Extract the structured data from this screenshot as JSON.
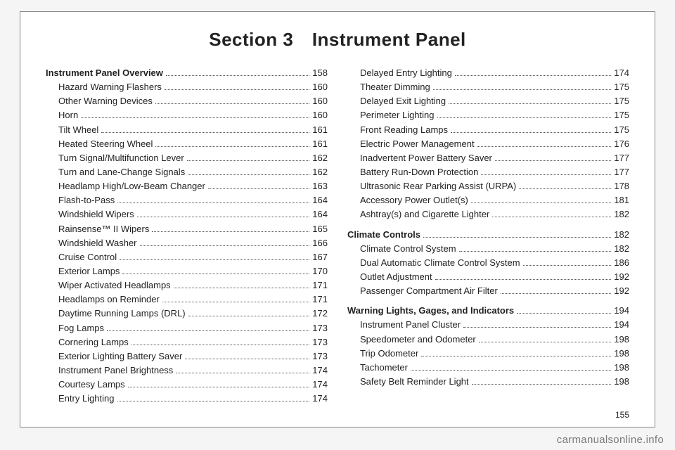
{
  "title": "Section 3 Instrument Panel",
  "page_number": "155",
  "watermark": "carmanualsonline.info",
  "columns": [
    [
      {
        "type": "heading",
        "label": "Instrument Panel Overview",
        "page": "158"
      },
      {
        "type": "sub",
        "label": "Hazard Warning Flashers",
        "page": "160"
      },
      {
        "type": "sub",
        "label": "Other Warning Devices",
        "page": "160"
      },
      {
        "type": "sub",
        "label": "Horn",
        "page": "160"
      },
      {
        "type": "sub",
        "label": "Tilt Wheel",
        "page": "161"
      },
      {
        "type": "sub",
        "label": "Heated Steering Wheel",
        "page": "161"
      },
      {
        "type": "sub",
        "label": "Turn Signal/Multifunction Lever",
        "page": "162"
      },
      {
        "type": "sub",
        "label": "Turn and Lane-Change Signals",
        "page": "162"
      },
      {
        "type": "sub",
        "label": "Headlamp High/Low-Beam Changer",
        "page": "163"
      },
      {
        "type": "sub",
        "label": "Flash-to-Pass",
        "page": "164"
      },
      {
        "type": "sub",
        "label": "Windshield Wipers",
        "page": "164"
      },
      {
        "type": "sub",
        "label": "Rainsense™ II Wipers",
        "page": "165"
      },
      {
        "type": "sub",
        "label": "Windshield Washer",
        "page": "166"
      },
      {
        "type": "sub",
        "label": "Cruise Control",
        "page": "167"
      },
      {
        "type": "sub",
        "label": "Exterior Lamps",
        "page": "170"
      },
      {
        "type": "sub",
        "label": "Wiper Activated Headlamps",
        "page": "171"
      },
      {
        "type": "sub",
        "label": "Headlamps on Reminder",
        "page": "171"
      },
      {
        "type": "sub",
        "label": "Daytime Running Lamps (DRL)",
        "page": "172"
      },
      {
        "type": "sub",
        "label": "Fog Lamps",
        "page": "173"
      },
      {
        "type": "sub",
        "label": "Cornering Lamps",
        "page": "173"
      },
      {
        "type": "sub",
        "label": "Exterior Lighting Battery Saver",
        "page": "173"
      },
      {
        "type": "sub",
        "label": "Instrument Panel Brightness",
        "page": "174"
      },
      {
        "type": "sub",
        "label": "Courtesy Lamps",
        "page": "174"
      },
      {
        "type": "sub",
        "label": "Entry Lighting",
        "page": "174"
      }
    ],
    [
      {
        "type": "sub",
        "label": "Delayed Entry Lighting",
        "page": "174"
      },
      {
        "type": "sub",
        "label": "Theater Dimming",
        "page": "175"
      },
      {
        "type": "sub",
        "label": "Delayed Exit Lighting",
        "page": "175"
      },
      {
        "type": "sub",
        "label": "Perimeter Lighting",
        "page": "175"
      },
      {
        "type": "sub",
        "label": "Front Reading Lamps",
        "page": "175"
      },
      {
        "type": "sub",
        "label": "Electric Power Management",
        "page": "176"
      },
      {
        "type": "sub",
        "label": "Inadvertent Power Battery Saver",
        "page": "177"
      },
      {
        "type": "sub",
        "label": "Battery Run-Down Protection",
        "page": "177"
      },
      {
        "type": "sub",
        "label": "Ultrasonic Rear Parking Assist (URPA)",
        "page": "178"
      },
      {
        "type": "sub",
        "label": "Accessory Power Outlet(s)",
        "page": "181"
      },
      {
        "type": "sub",
        "label": "Ashtray(s) and Cigarette Lighter",
        "page": "182"
      },
      {
        "type": "gap"
      },
      {
        "type": "heading",
        "label": "Climate Controls",
        "page": "182"
      },
      {
        "type": "sub",
        "label": "Climate Control System",
        "page": "182"
      },
      {
        "type": "sub",
        "label": "Dual Automatic Climate Control System",
        "page": "186"
      },
      {
        "type": "sub",
        "label": "Outlet Adjustment",
        "page": "192"
      },
      {
        "type": "sub",
        "label": "Passenger Compartment Air Filter",
        "page": "192"
      },
      {
        "type": "gap"
      },
      {
        "type": "heading",
        "label": "Warning Lights, Gages, and Indicators",
        "page": "194"
      },
      {
        "type": "sub",
        "label": "Instrument Panel Cluster",
        "page": "194"
      },
      {
        "type": "sub",
        "label": "Speedometer and Odometer",
        "page": "198"
      },
      {
        "type": "sub",
        "label": "Trip Odometer",
        "page": "198"
      },
      {
        "type": "sub",
        "label": "Tachometer",
        "page": "198"
      },
      {
        "type": "sub",
        "label": "Safety Belt Reminder Light",
        "page": "198"
      }
    ]
  ]
}
